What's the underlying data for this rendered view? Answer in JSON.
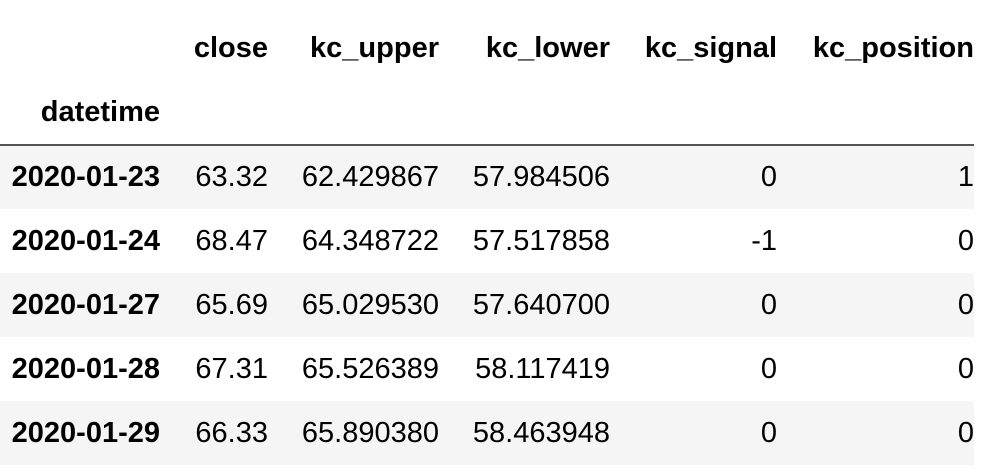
{
  "table": {
    "index_name": "datetime",
    "columns": [
      "close",
      "kc_upper",
      "kc_lower",
      "kc_signal",
      "kc_position"
    ],
    "rows": [
      {
        "index": "2020-01-23",
        "values": [
          "63.32",
          "62.429867",
          "57.984506",
          "0",
          "1"
        ]
      },
      {
        "index": "2020-01-24",
        "values": [
          "68.47",
          "64.348722",
          "57.517858",
          "-1",
          "0"
        ]
      },
      {
        "index": "2020-01-27",
        "values": [
          "65.69",
          "65.029530",
          "57.640700",
          "0",
          "0"
        ]
      },
      {
        "index": "2020-01-28",
        "values": [
          "67.31",
          "65.526389",
          "58.117419",
          "0",
          "0"
        ]
      },
      {
        "index": "2020-01-29",
        "values": [
          "66.33",
          "65.890380",
          "58.463948",
          "0",
          "0"
        ]
      }
    ]
  },
  "colors": {
    "text": "#000000",
    "stripe": "#f5f5f5",
    "header_rule": "#555555",
    "background": "#ffffff"
  }
}
